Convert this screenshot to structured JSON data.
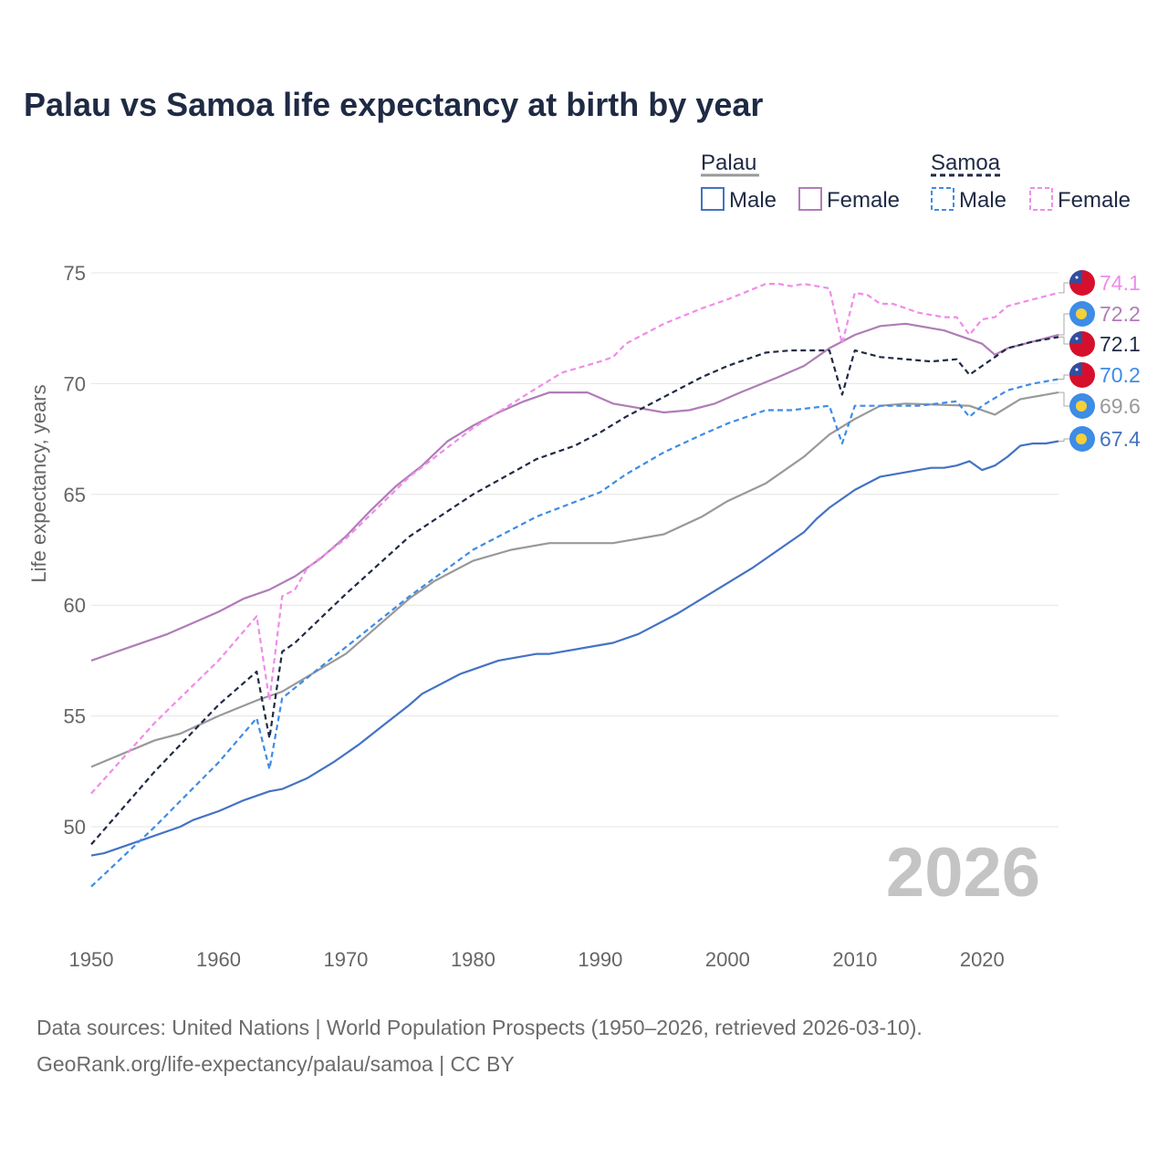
{
  "title": "Palau vs Samoa life expectancy at birth by year",
  "year_watermark": "2026",
  "source_line1": "Data sources: United Nations | World Population Prospects (1950–2026, retrieved 2026-03-10).",
  "source_line2": "GeoRank.org/life-expectancy/palau/samoa | CC BY",
  "legend": {
    "groups": [
      {
        "name": "Palau",
        "dashed": false,
        "color": "#999999",
        "entries": [
          {
            "label": "Male",
            "color": "#4472c4",
            "dashed": false
          },
          {
            "label": "Female",
            "color": "#b07cb8",
            "dashed": false
          }
        ]
      },
      {
        "name": "Samoa",
        "dashed": true,
        "color": "#1f2a44",
        "entries": [
          {
            "label": "Male",
            "color": "#3d8ce6",
            "dashed": true
          },
          {
            "label": "Female",
            "color": "#f08ce8",
            "dashed": true
          }
        ]
      }
    ]
  },
  "chart_data": {
    "type": "line",
    "title": "Palau vs Samoa life expectancy at birth by year",
    "xlabel": "",
    "ylabel": "Life expectancy, years",
    "xlim": [
      1950,
      2026
    ],
    "ylim": [
      45.5,
      76.5
    ],
    "xticks": [
      1950,
      1960,
      1970,
      1980,
      1990,
      2000,
      2010,
      2020
    ],
    "yticks": [
      50,
      55,
      60,
      65,
      70,
      75
    ],
    "grid": true,
    "series": [
      {
        "name": "Palau Total",
        "country": "Palau",
        "color": "#999999",
        "dashed": false,
        "flag": "palau",
        "end_label": "69.6",
        "points": [
          [
            1950,
            52.7
          ],
          [
            1955,
            53.9
          ],
          [
            1957,
            54.2
          ],
          [
            1960,
            55.0
          ],
          [
            1963,
            55.7
          ],
          [
            1965,
            56.1
          ],
          [
            1970,
            57.8
          ],
          [
            1975,
            60.3
          ],
          [
            1977,
            61.1
          ],
          [
            1980,
            62.0
          ],
          [
            1983,
            62.5
          ],
          [
            1986,
            62.8
          ],
          [
            1991,
            62.8
          ],
          [
            1995,
            63.2
          ],
          [
            1998,
            64.0
          ],
          [
            2000,
            64.7
          ],
          [
            2003,
            65.5
          ],
          [
            2006,
            66.7
          ],
          [
            2008,
            67.7
          ],
          [
            2010,
            68.4
          ],
          [
            2012,
            69.0
          ],
          [
            2014,
            69.1
          ],
          [
            2019,
            69.0
          ],
          [
            2021,
            68.6
          ],
          [
            2023,
            69.3
          ],
          [
            2026,
            69.6
          ]
        ]
      },
      {
        "name": "Palau Male",
        "country": "Palau",
        "color": "#4472c4",
        "dashed": false,
        "flag": "palau",
        "end_label": "67.4",
        "points": [
          [
            1950,
            48.7
          ],
          [
            1951,
            48.8
          ],
          [
            1954,
            49.4
          ],
          [
            1957,
            50.0
          ],
          [
            1958,
            50.3
          ],
          [
            1960,
            50.7
          ],
          [
            1962,
            51.2
          ],
          [
            1964,
            51.6
          ],
          [
            1965,
            51.7
          ],
          [
            1967,
            52.2
          ],
          [
            1969,
            52.9
          ],
          [
            1971,
            53.7
          ],
          [
            1973,
            54.6
          ],
          [
            1975,
            55.5
          ],
          [
            1976,
            56.0
          ],
          [
            1979,
            56.9
          ],
          [
            1982,
            57.5
          ],
          [
            1985,
            57.8
          ],
          [
            1986,
            57.8
          ],
          [
            1991,
            58.3
          ],
          [
            1993,
            58.7
          ],
          [
            1996,
            59.6
          ],
          [
            1998,
            60.3
          ],
          [
            2000,
            61.0
          ],
          [
            2002,
            61.7
          ],
          [
            2004,
            62.5
          ],
          [
            2006,
            63.3
          ],
          [
            2007,
            63.9
          ],
          [
            2008,
            64.4
          ],
          [
            2010,
            65.2
          ],
          [
            2012,
            65.8
          ],
          [
            2015,
            66.1
          ],
          [
            2016,
            66.2
          ],
          [
            2017,
            66.2
          ],
          [
            2018,
            66.3
          ],
          [
            2019,
            66.5
          ],
          [
            2020,
            66.1
          ],
          [
            2021,
            66.3
          ],
          [
            2022,
            66.7
          ],
          [
            2023,
            67.2
          ],
          [
            2024,
            67.3
          ],
          [
            2025,
            67.3
          ],
          [
            2026,
            67.4
          ]
        ]
      },
      {
        "name": "Palau Female",
        "country": "Palau",
        "color": "#b07cb8",
        "dashed": false,
        "flag": "palau",
        "end_label": "72.2",
        "points": [
          [
            1950,
            57.5
          ],
          [
            1953,
            58.1
          ],
          [
            1956,
            58.7
          ],
          [
            1958,
            59.2
          ],
          [
            1960,
            59.7
          ],
          [
            1962,
            60.3
          ],
          [
            1964,
            60.7
          ],
          [
            1966,
            61.3
          ],
          [
            1968,
            62.1
          ],
          [
            1970,
            63.1
          ],
          [
            1972,
            64.3
          ],
          [
            1974,
            65.4
          ],
          [
            1976,
            66.3
          ],
          [
            1978,
            67.4
          ],
          [
            1980,
            68.1
          ],
          [
            1982,
            68.7
          ],
          [
            1984,
            69.2
          ],
          [
            1986,
            69.6
          ],
          [
            1989,
            69.6
          ],
          [
            1991,
            69.1
          ],
          [
            1993,
            68.9
          ],
          [
            1995,
            68.7
          ],
          [
            1997,
            68.8
          ],
          [
            1999,
            69.1
          ],
          [
            2001,
            69.6
          ],
          [
            2004,
            70.3
          ],
          [
            2006,
            70.8
          ],
          [
            2008,
            71.6
          ],
          [
            2010,
            72.2
          ],
          [
            2012,
            72.6
          ],
          [
            2014,
            72.7
          ],
          [
            2017,
            72.4
          ],
          [
            2019,
            72.0
          ],
          [
            2020,
            71.8
          ],
          [
            2021,
            71.3
          ],
          [
            2022,
            71.6
          ],
          [
            2024,
            71.9
          ],
          [
            2026,
            72.2
          ]
        ]
      },
      {
        "name": "Samoa Total",
        "country": "Samoa",
        "color": "#1f2a44",
        "dashed": true,
        "flag": "samoa",
        "end_label": "72.1",
        "points": [
          [
            1950,
            49.2
          ],
          [
            1955,
            52.5
          ],
          [
            1960,
            55.5
          ],
          [
            1963,
            57.0
          ],
          [
            1964,
            54.0
          ],
          [
            1965,
            57.9
          ],
          [
            1966,
            58.3
          ],
          [
            1970,
            60.5
          ],
          [
            1975,
            63.1
          ],
          [
            1980,
            65.0
          ],
          [
            1985,
            66.6
          ],
          [
            1988,
            67.2
          ],
          [
            1990,
            67.8
          ],
          [
            1992,
            68.5
          ],
          [
            1995,
            69.4
          ],
          [
            1998,
            70.3
          ],
          [
            2000,
            70.8
          ],
          [
            2003,
            71.4
          ],
          [
            2005,
            71.5
          ],
          [
            2008,
            71.5
          ],
          [
            2009,
            69.5
          ],
          [
            2010,
            71.5
          ],
          [
            2012,
            71.2
          ],
          [
            2014,
            71.1
          ],
          [
            2016,
            71.0
          ],
          [
            2018,
            71.1
          ],
          [
            2019,
            70.4
          ],
          [
            2020,
            70.8
          ],
          [
            2021,
            71.2
          ],
          [
            2022,
            71.6
          ],
          [
            2024,
            71.9
          ],
          [
            2026,
            72.1
          ]
        ]
      },
      {
        "name": "Samoa Male",
        "country": "Samoa",
        "color": "#3d8ce6",
        "dashed": true,
        "flag": "samoa",
        "end_label": "70.2",
        "points": [
          [
            1950,
            47.3
          ],
          [
            1955,
            50.0
          ],
          [
            1960,
            52.9
          ],
          [
            1963,
            54.9
          ],
          [
            1964,
            52.6
          ],
          [
            1965,
            55.8
          ],
          [
            1968,
            57.2
          ],
          [
            1970,
            58.1
          ],
          [
            1975,
            60.4
          ],
          [
            1980,
            62.5
          ],
          [
            1985,
            64.0
          ],
          [
            1990,
            65.1
          ],
          [
            1992,
            65.9
          ],
          [
            1995,
            66.9
          ],
          [
            1998,
            67.7
          ],
          [
            2000,
            68.2
          ],
          [
            2003,
            68.8
          ],
          [
            2005,
            68.8
          ],
          [
            2008,
            69.0
          ],
          [
            2009,
            67.3
          ],
          [
            2010,
            69.0
          ],
          [
            2012,
            69.0
          ],
          [
            2015,
            69.0
          ],
          [
            2018,
            69.2
          ],
          [
            2019,
            68.5
          ],
          [
            2020,
            69.0
          ],
          [
            2022,
            69.7
          ],
          [
            2024,
            70.0
          ],
          [
            2026,
            70.2
          ]
        ]
      },
      {
        "name": "Samoa Female",
        "country": "Samoa",
        "color": "#f08ce8",
        "dashed": true,
        "flag": "samoa",
        "end_label": "74.1",
        "points": [
          [
            1950,
            51.5
          ],
          [
            1955,
            54.7
          ],
          [
            1960,
            57.5
          ],
          [
            1963,
            59.5
          ],
          [
            1964,
            55.7
          ],
          [
            1965,
            60.4
          ],
          [
            1966,
            60.7
          ],
          [
            1967,
            61.7
          ],
          [
            1970,
            63.0
          ],
          [
            1975,
            65.8
          ],
          [
            1980,
            68.0
          ],
          [
            1985,
            69.8
          ],
          [
            1987,
            70.5
          ],
          [
            1990,
            71.0
          ],
          [
            1991,
            71.2
          ],
          [
            1992,
            71.8
          ],
          [
            1995,
            72.7
          ],
          [
            1998,
            73.4
          ],
          [
            2000,
            73.8
          ],
          [
            2003,
            74.5
          ],
          [
            2004,
            74.5
          ],
          [
            2005,
            74.4
          ],
          [
            2006,
            74.5
          ],
          [
            2007,
            74.4
          ],
          [
            2008,
            74.3
          ],
          [
            2009,
            71.8
          ],
          [
            2010,
            74.1
          ],
          [
            2011,
            74.0
          ],
          [
            2012,
            73.6
          ],
          [
            2013,
            73.6
          ],
          [
            2015,
            73.2
          ],
          [
            2017,
            73.0
          ],
          [
            2018,
            73.0
          ],
          [
            2019,
            72.2
          ],
          [
            2020,
            72.9
          ],
          [
            2021,
            73.0
          ],
          [
            2022,
            73.5
          ],
          [
            2024,
            73.8
          ],
          [
            2026,
            74.1
          ]
        ]
      }
    ]
  }
}
